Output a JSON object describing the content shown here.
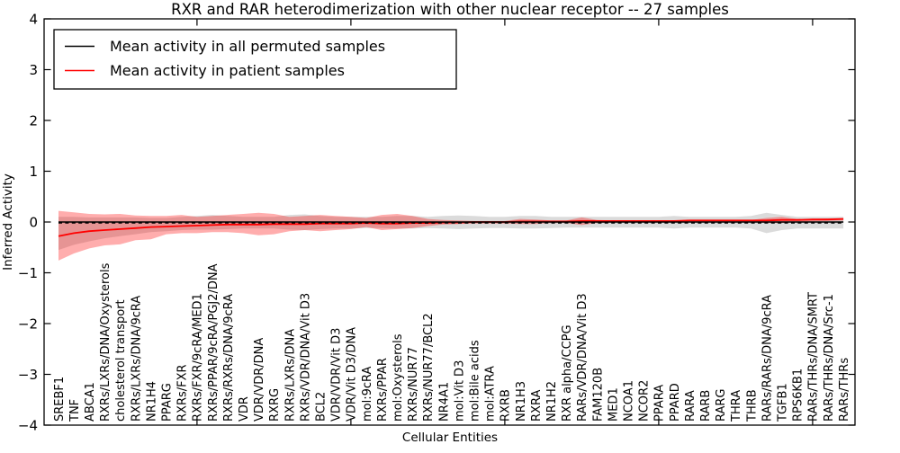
{
  "title": "RXR and RAR heterodimerization with other nuclear receptor -- 27 samples",
  "axes": {
    "ylabel": "Inferred Activity",
    "xlabel": "Cellular Entities",
    "yticks": [
      4,
      3,
      2,
      1,
      0,
      -1,
      -2,
      -3,
      -4
    ],
    "ylim": [
      -4,
      4
    ]
  },
  "legend": {
    "entries": [
      {
        "label": "Mean activity in all permuted samples",
        "color": "#000000"
      },
      {
        "label": "Mean activity in patient samples",
        "color": "#ff0000"
      }
    ]
  },
  "chart_data": {
    "type": "line",
    "title": "RXR and RAR heterodimerization with other nuclear receptor -- 27 samples",
    "xlabel": "Cellular Entities",
    "ylabel": "Inferred Activity",
    "ylim": [
      -4,
      4
    ],
    "grid": false,
    "legend_position": "upper left",
    "xticks_major_idx": [
      9,
      19,
      29,
      39,
      49
    ],
    "categories": [
      "SREBF1",
      "TNF",
      "ABCA1",
      "RXRs/LXRs/DNA/Oxysterols",
      "cholesterol transport",
      "RXRs/LXRs/DNA/9cRA",
      "NR1H4",
      "PPARG",
      "RXRs/FXR",
      "RXRs/FXR/9cRA/MED1",
      "RXRs/PPAR/9cRA/PGJ2/DNA",
      "RXRs/RXRs/DNA/9cRA",
      "VDR",
      "VDR/VDR/DNA",
      "RXRG",
      "RXRs/LXRs/DNA",
      "RXRs/VDR/DNA/Vit D3",
      "BCL2",
      "VDR/VDR/Vit D3",
      "VDR/Vit D3/DNA",
      "mol:9cRA",
      "RXRs/PPAR",
      "mol:Oxysterols",
      "RXRs/NUR77",
      "RXRs/NUR77/BCL2",
      "NR4A1",
      "mol:Vit D3",
      "mol:Bile acids",
      "mol:ATRA",
      "RXRB",
      "NR1H3",
      "RXRA",
      "NR1H2",
      "RXR alpha/CCPG",
      "RARs/VDR/DNA/Vit D3",
      "FAM120B",
      "MED1",
      "NCOA1",
      "NCOR2",
      "PPARA",
      "PPARD",
      "RARA",
      "RARB",
      "RARG",
      "THRA",
      "THRB",
      "RARs/RARs/DNA/9cRA",
      "TGFB1",
      "RPS6KB1",
      "RARs/THRs/DNA/SMRT",
      "RARs/THRs/DNA/Src-1",
      "RARs/THRs"
    ],
    "series": [
      {
        "name": "Mean activity in all permuted samples",
        "color": "#000000",
        "style": "solid",
        "values": [
          0,
          0,
          0,
          0,
          0,
          0,
          0,
          0,
          0,
          0,
          0,
          0,
          0,
          0,
          0,
          0,
          0,
          0,
          0,
          0,
          0,
          0,
          0,
          0,
          0,
          0,
          0,
          0,
          0,
          0,
          0,
          0,
          0,
          0,
          0,
          0,
          0,
          0,
          0,
          0,
          0,
          0,
          0,
          0,
          0,
          0,
          0,
          0,
          0,
          0,
          0,
          0
        ]
      },
      {
        "name": "Median activity in all permuted samples (dashed overlay)",
        "color": "#000000",
        "style": "dashed",
        "values": [
          -0.02,
          -0.02,
          -0.02,
          -0.02,
          -0.02,
          -0.02,
          -0.02,
          -0.02,
          -0.02,
          -0.02,
          -0.02,
          -0.02,
          -0.02,
          -0.02,
          -0.02,
          -0.02,
          -0.02,
          -0.02,
          -0.02,
          -0.02,
          -0.02,
          -0.02,
          -0.02,
          -0.02,
          -0.02,
          -0.02,
          -0.02,
          -0.02,
          -0.02,
          -0.02,
          -0.02,
          -0.02,
          -0.02,
          -0.02,
          -0.02,
          -0.02,
          -0.02,
          -0.02,
          -0.02,
          -0.02,
          -0.02,
          -0.02,
          -0.02,
          -0.02,
          -0.02,
          -0.02,
          -0.02,
          -0.02,
          -0.02,
          -0.02,
          -0.02,
          -0.02
        ]
      },
      {
        "name": "Mean activity in patient samples",
        "color": "#ff0000",
        "style": "solid",
        "values": [
          -0.28,
          -0.22,
          -0.18,
          -0.16,
          -0.14,
          -0.12,
          -0.1,
          -0.09,
          -0.08,
          -0.07,
          -0.06,
          -0.05,
          -0.05,
          -0.05,
          -0.04,
          -0.04,
          -0.04,
          -0.03,
          -0.03,
          -0.03,
          -0.02,
          -0.03,
          -0.03,
          -0.02,
          -0.02,
          -0.01,
          -0.01,
          0.0,
          0.0,
          0.0,
          0.01,
          0.01,
          0.01,
          0.01,
          0.02,
          0.02,
          0.02,
          0.02,
          0.02,
          0.02,
          0.02,
          0.03,
          0.03,
          0.03,
          0.03,
          0.03,
          0.03,
          0.04,
          0.04,
          0.05,
          0.05,
          0.06
        ]
      }
    ],
    "bands": [
      {
        "name": "permuted-samples-spread",
        "color": "rgba(0,0,0,0.14)",
        "upper": [
          0.1,
          0.1,
          0.09,
          0.09,
          0.09,
          0.09,
          0.08,
          0.08,
          0.1,
          0.12,
          0.14,
          0.12,
          0.1,
          0.1,
          0.1,
          0.14,
          0.15,
          0.12,
          0.1,
          0.1,
          0.1,
          0.1,
          0.12,
          0.12,
          0.1,
          0.12,
          0.13,
          0.12,
          0.1,
          0.1,
          0.12,
          0.12,
          0.1,
          0.1,
          0.1,
          0.1,
          0.1,
          0.1,
          0.1,
          0.1,
          0.12,
          0.1,
          0.1,
          0.1,
          0.1,
          0.12,
          0.18,
          0.14,
          0.1,
          0.1,
          0.1,
          0.1
        ],
        "lower": [
          -0.55,
          -0.45,
          -0.38,
          -0.32,
          -0.28,
          -0.24,
          -0.2,
          -0.18,
          -0.16,
          -0.15,
          -0.15,
          -0.14,
          -0.13,
          -0.13,
          -0.13,
          -0.15,
          -0.16,
          -0.14,
          -0.13,
          -0.13,
          -0.12,
          -0.12,
          -0.13,
          -0.13,
          -0.12,
          -0.13,
          -0.14,
          -0.13,
          -0.12,
          -0.12,
          -0.13,
          -0.13,
          -0.12,
          -0.11,
          -0.11,
          -0.11,
          -0.11,
          -0.11,
          -0.11,
          -0.11,
          -0.13,
          -0.11,
          -0.11,
          -0.11,
          -0.11,
          -0.13,
          -0.22,
          -0.16,
          -0.13,
          -0.13,
          -0.13,
          -0.13
        ]
      },
      {
        "name": "patient-samples-spread",
        "color": "rgba(255,0,0,0.32)",
        "upper": [
          0.22,
          0.19,
          0.16,
          0.15,
          0.16,
          0.13,
          0.12,
          0.12,
          0.14,
          0.1,
          0.12,
          0.14,
          0.16,
          0.18,
          0.16,
          0.1,
          0.12,
          0.14,
          0.12,
          0.1,
          0.08,
          0.14,
          0.16,
          0.12,
          0.06,
          0.04,
          0.03,
          0.02,
          0.02,
          0.02,
          0.06,
          0.05,
          0.03,
          0.03,
          0.09,
          0.04,
          0.03,
          0.03,
          0.03,
          0.03,
          0.03,
          0.04,
          0.04,
          0.04,
          0.04,
          0.04,
          0.08,
          0.1,
          0.06,
          0.06,
          0.07,
          0.08
        ],
        "lower": [
          -0.76,
          -0.62,
          -0.52,
          -0.46,
          -0.44,
          -0.36,
          -0.34,
          -0.24,
          -0.22,
          -0.22,
          -0.2,
          -0.2,
          -0.22,
          -0.26,
          -0.24,
          -0.18,
          -0.16,
          -0.18,
          -0.16,
          -0.14,
          -0.1,
          -0.16,
          -0.14,
          -0.12,
          -0.08,
          -0.05,
          -0.04,
          -0.03,
          -0.03,
          -0.03,
          -0.04,
          -0.04,
          -0.02,
          -0.02,
          -0.06,
          -0.02,
          -0.01,
          -0.01,
          -0.01,
          -0.01,
          -0.01,
          0.0,
          0.0,
          0.0,
          0.0,
          0.0,
          -0.02,
          -0.02,
          0.0,
          0.01,
          0.02,
          0.03
        ]
      }
    ]
  }
}
